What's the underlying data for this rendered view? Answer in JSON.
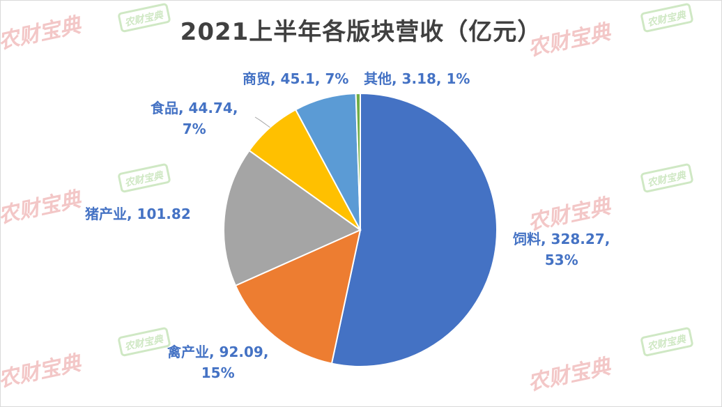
{
  "chart_data": {
    "type": "pie",
    "title": "2021上半年各版块营收（亿元）",
    "unit": "亿元",
    "slices": [
      {
        "name": "饲料",
        "value": 328.27,
        "percent": "53%",
        "color": "#4472c4",
        "label_line1": "饲料, 328.27,",
        "label_line2": "53%"
      },
      {
        "name": "禽产业",
        "value": 92.09,
        "percent": "15%",
        "color": "#ed7d31",
        "label_line1": "禽产业, 92.09,",
        "label_line2": "15%"
      },
      {
        "name": "猪产业",
        "value": 101.82,
        "percent": "",
        "color": "#a5a5a5",
        "label_line1": "猪产业, 101.82",
        "label_line2": ""
      },
      {
        "name": "食品",
        "value": 44.74,
        "percent": "7%",
        "color": "#ffc000",
        "label_line1": "食品, 44.74,",
        "label_line2": "7%"
      },
      {
        "name": "商贸",
        "value": 45.1,
        "percent": "7%",
        "color": "#5b9bd5",
        "label_line1": "商贸, 45.1, 7%",
        "label_line2": ""
      },
      {
        "name": "其他",
        "value": 3.18,
        "percent": "1%",
        "color": "#70ad47",
        "label_line1": "其他, 3.18, 1%",
        "label_line2": ""
      }
    ]
  },
  "watermark": {
    "text": "农财宝典",
    "badge_text": "农财宝典",
    "color": "#f3c7c7"
  }
}
